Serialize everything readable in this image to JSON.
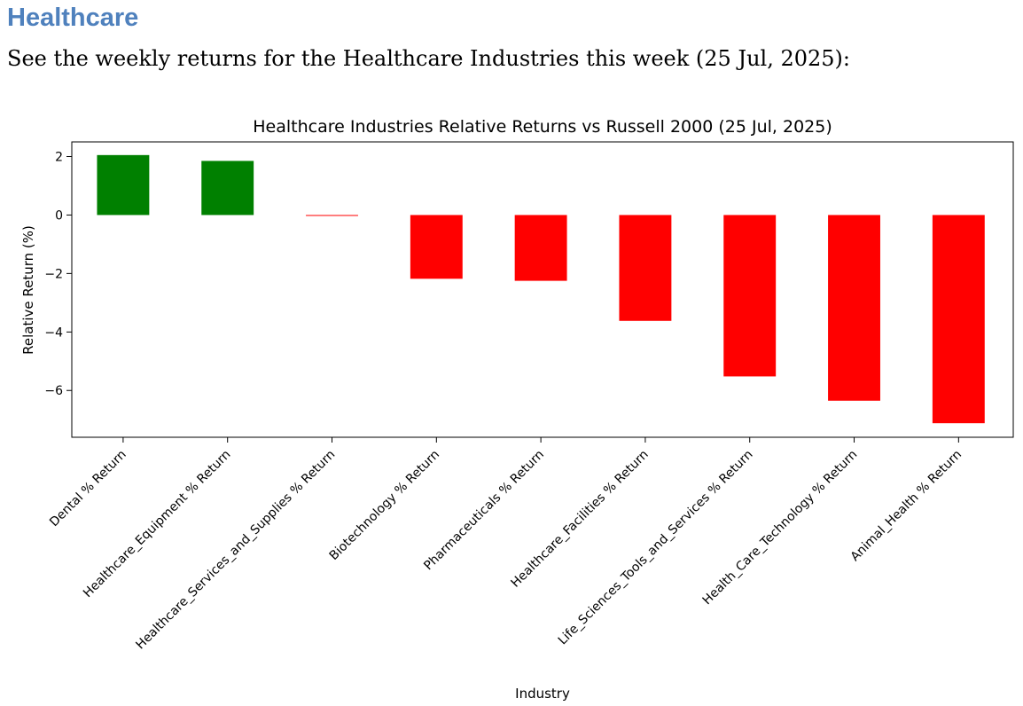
{
  "document": {
    "heading": "Healthcare",
    "intro": "See the weekly returns for the Healthcare Industries this week (25 Jul, 2025):"
  },
  "chart_data": {
    "type": "bar",
    "title": "Healthcare Industries Relative Returns vs Russell 2000 (25 Jul, 2025)",
    "xlabel": "Industry",
    "ylabel": "Relative Return (%)",
    "ylim": [
      -7.6,
      2.5
    ],
    "yticks": [
      2,
      0,
      -2,
      -4,
      -6
    ],
    "ytick_labels": [
      "2",
      "0",
      "−2",
      "−4",
      "−6"
    ],
    "grid": false,
    "categories": [
      "Dental % Return",
      "Healthcare_Equipment % Return",
      "Healthcare_Services_and_Supplies % Return",
      "Biotechnology % Return",
      "Pharmaceuticals % Return",
      "Healthcare_Facilities % Return",
      "Life_Sciences_Tools_and_Services % Return",
      "Health_Care_Technology % Return",
      "Animal_Health % Return"
    ],
    "values": [
      2.05,
      1.85,
      -0.02,
      -2.18,
      -2.25,
      -3.62,
      -5.52,
      -6.35,
      -7.12
    ],
    "colors": {
      "positive": "#008000",
      "negative": "#ff0000",
      "axis": "#000000"
    }
  }
}
